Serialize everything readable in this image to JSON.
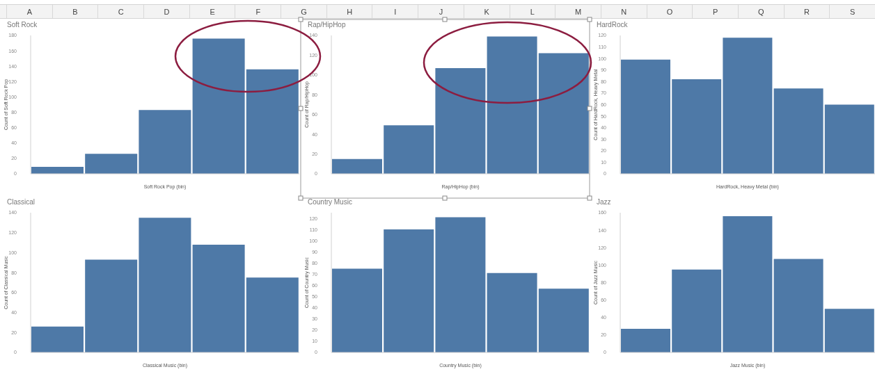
{
  "chart_data": [
    {
      "type": "other",
      "annotations": [
        "A",
        "B",
        "C",
        "D",
        "E",
        "F",
        "G",
        "H",
        "I",
        "J",
        "K",
        "L",
        "M",
        "N",
        "O",
        "P",
        "Q",
        "R",
        "S"
      ]
    },
    {
      "type": "bar",
      "title": "Soft Rock",
      "xlabel": "Soft Rock Pop (bin)",
      "ylabel": "Count of Soft Rock Pop",
      "categories": [
        null,
        null,
        null,
        null,
        null
      ],
      "values": [
        9,
        26,
        83,
        176,
        136
      ],
      "color": "#4e79a7",
      "ylim": [
        0,
        180
      ],
      "yticks": [
        0,
        20,
        40,
        60,
        80,
        100,
        120,
        140,
        160,
        180
      ]
    },
    {
      "type": "bar",
      "title": "Rap/HipHop",
      "xlabel": "Rap/HipHop (bin)",
      "ylabel": "Count of Rap/HipHop",
      "categories": [
        null,
        null,
        null,
        null,
        null
      ],
      "values": [
        15,
        49,
        107,
        139,
        122
      ],
      "color": "#4e79a7",
      "ylim": [
        0,
        140
      ],
      "yticks": [
        0,
        20,
        40,
        60,
        80,
        100,
        120,
        140
      ]
    },
    {
      "type": "bar",
      "title": "HardRock",
      "xlabel": "HardRock, Heavy Metal (bin)",
      "ylabel": "Count of HardRock, Heavy Metal",
      "categories": [
        null,
        null,
        null,
        null,
        null
      ],
      "values": [
        99,
        82,
        118,
        74,
        60
      ],
      "color": "#4e79a7",
      "ylim": [
        0,
        120
      ],
      "yticks": [
        0,
        10,
        20,
        30,
        40,
        50,
        60,
        70,
        80,
        90,
        100,
        110,
        120
      ]
    },
    {
      "type": "bar",
      "title": "Classical",
      "xlabel": "Classical Music (bin)",
      "ylabel": "Count of Classical Music",
      "categories": [
        null,
        null,
        null,
        null,
        null
      ],
      "values": [
        26,
        93,
        135,
        108,
        75
      ],
      "color": "#4e79a7",
      "ylim": [
        0,
        140
      ],
      "yticks": [
        0,
        20,
        40,
        60,
        80,
        100,
        120,
        140
      ]
    },
    {
      "type": "bar",
      "title": "Country Music",
      "xlabel": "Country Music (bin)",
      "ylabel": "Count of Country Music",
      "categories": [
        null,
        null,
        null,
        null,
        null
      ],
      "values": [
        75,
        110,
        121,
        71,
        57
      ],
      "color": "#4e79a7",
      "ylim": [
        0,
        125
      ],
      "yticks": [
        0,
        10,
        20,
        30,
        40,
        50,
        60,
        70,
        80,
        90,
        100,
        110,
        120
      ]
    },
    {
      "type": "bar",
      "title": "Jazz",
      "xlabel": "Jazz Music (bin)",
      "ylabel": "Count of Jazz Music",
      "categories": [
        null,
        null,
        null,
        null,
        null
      ],
      "values": [
        27,
        95,
        156,
        107,
        50
      ],
      "color": "#4e79a7",
      "ylim": [
        0,
        160
      ],
      "yticks": [
        0,
        20,
        40,
        60,
        80,
        100,
        120,
        140,
        160
      ]
    }
  ]
}
